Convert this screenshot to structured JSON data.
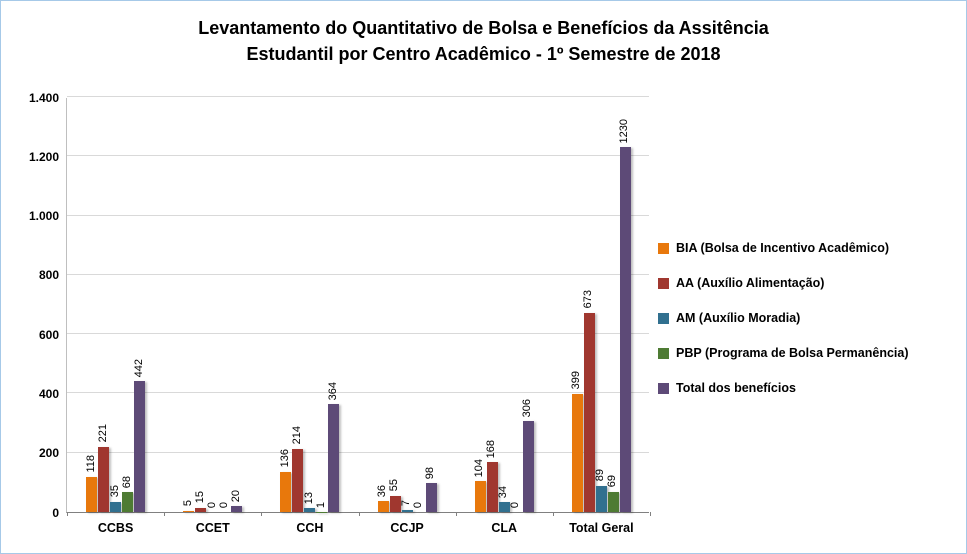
{
  "title": {
    "line1": "Levantamento do Quantitativo de Bolsa e Benefícios da Assitência",
    "line2": "Estudantil por Centro Acadêmico - 1º Semestre de 2018"
  },
  "chart_data": {
    "type": "bar",
    "title": "Levantamento do Quantitativo de Bolsa e Benefícios da Assitência Estudantil por Centro Acadêmico - 1º Semestre de 2018",
    "categories": [
      "CCBS",
      "CCET",
      "CCH",
      "CCJP",
      "CLA",
      "Total Geral"
    ],
    "series": [
      {
        "name": "BIA (Bolsa de Incentivo Acadêmico)",
        "color": "#e8780c",
        "values": [
          118,
          5,
          136,
          36,
          104,
          399
        ]
      },
      {
        "name": "AA (Auxílio Alimentação)",
        "color": "#a0372f",
        "values": [
          221,
          15,
          214,
          55,
          168,
          673
        ]
      },
      {
        "name": "AM (Auxílio Moradia)",
        "color": "#31708f",
        "values": [
          35,
          0,
          13,
          7,
          34,
          89
        ]
      },
      {
        "name": "PBP (Programa de Bolsa Permanência)",
        "color": "#4e7b33",
        "values": [
          68,
          0,
          1,
          0,
          0,
          69
        ]
      },
      {
        "name": "Total dos benefícios",
        "color": "#5d4a77",
        "values": [
          442,
          20,
          364,
          98,
          306,
          1230
        ]
      }
    ],
    "ylim": [
      0,
      1400
    ],
    "ytick_step": 200,
    "ytick_labels": [
      "0",
      "200",
      "400",
      "600",
      "800",
      "1.000",
      "1.200",
      "1.400"
    ],
    "grid": true,
    "legend_position": "right",
    "value_labels": "rotated-90"
  }
}
